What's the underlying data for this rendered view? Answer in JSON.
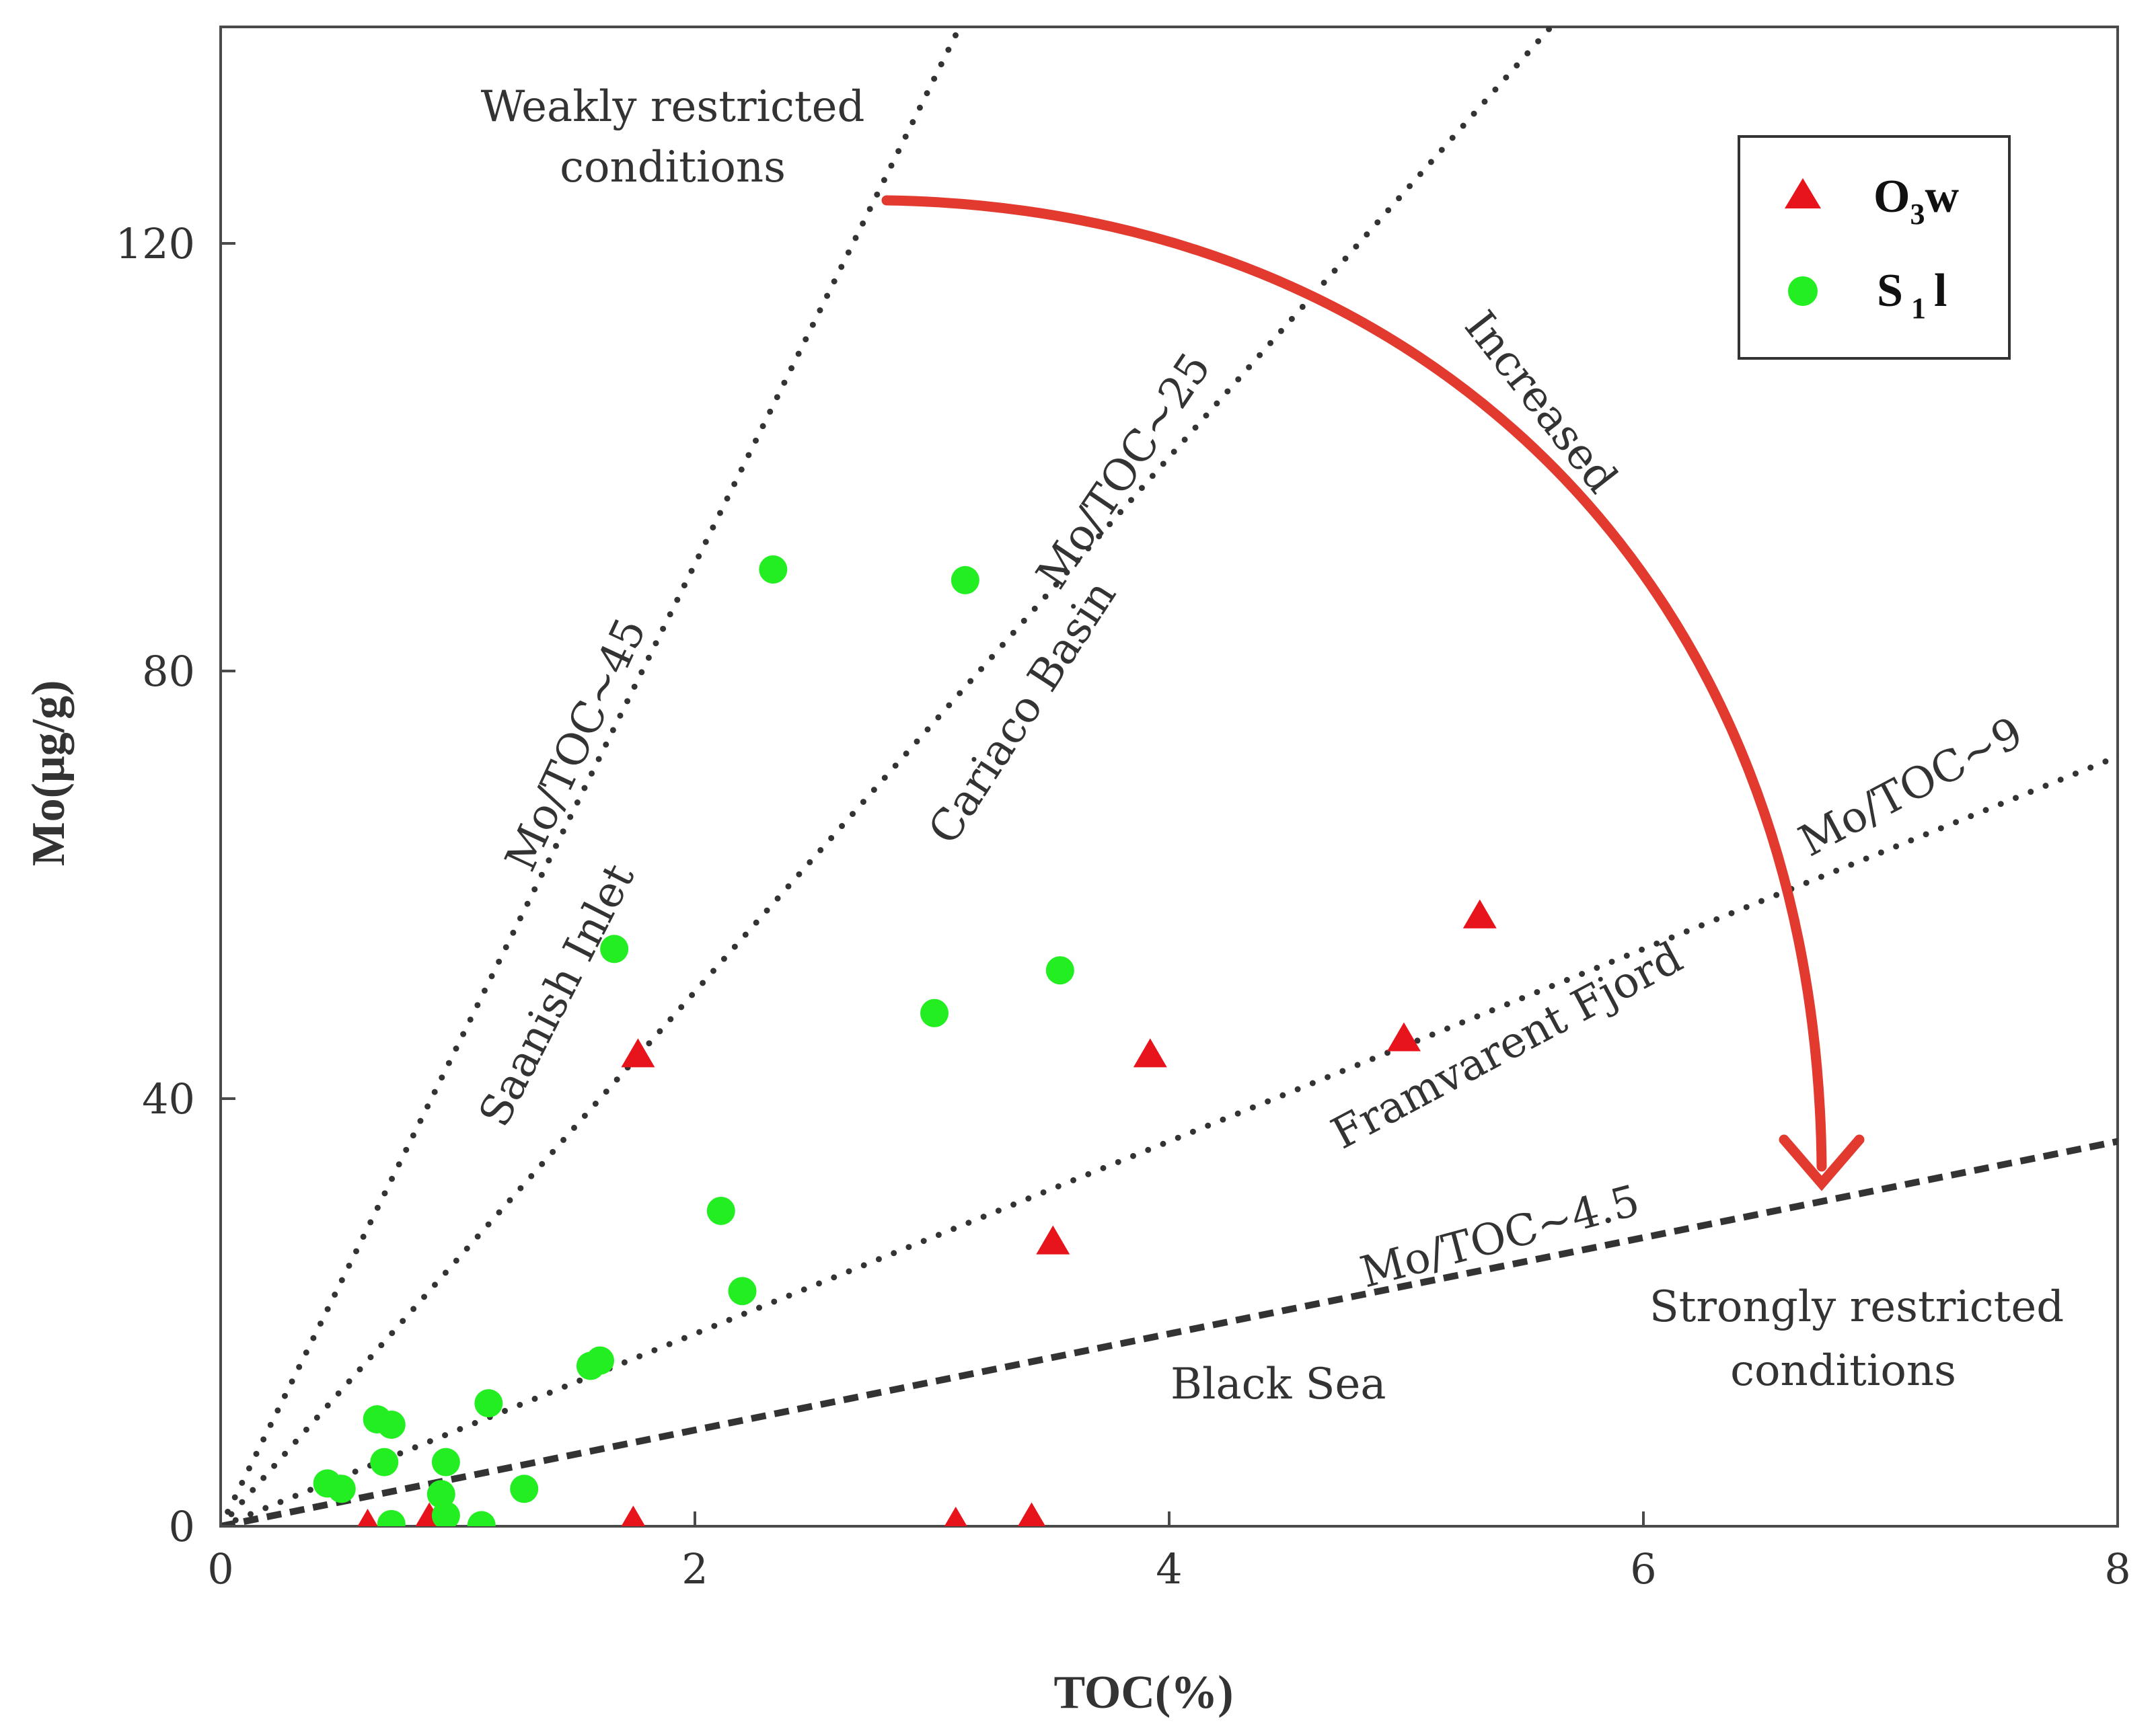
{
  "chart_data": {
    "type": "scatter",
    "xlabel": "TOC(%)",
    "ylabel": "Mo(μg/g)",
    "xlim": [
      0,
      8
    ],
    "ylim": [
      0,
      140
    ],
    "x_ticks": [
      "0",
      "2",
      "4",
      "6",
      "8"
    ],
    "x_tick_values": [
      0,
      2,
      4,
      6,
      8
    ],
    "y_ticks": [
      "0",
      "40",
      "80",
      "120"
    ],
    "y_tick_values": [
      0,
      40,
      80,
      120
    ],
    "grid": false,
    "legend_position": "top-right",
    "series": [
      {
        "name": "O3w",
        "legend_main": "O",
        "legend_sub": "3",
        "legend_tail": "w",
        "marker": "triangle",
        "color": "#e8141b",
        "points": [
          {
            "x": 0.62,
            "y": 0.0
          },
          {
            "x": 0.88,
            "y": 0.6
          },
          {
            "x": 1.74,
            "y": 0.3
          },
          {
            "x": 3.1,
            "y": 0.2
          },
          {
            "x": 3.42,
            "y": 0.6
          },
          {
            "x": 1.76,
            "y": 44.0
          },
          {
            "x": 3.92,
            "y": 44.0
          },
          {
            "x": 4.99,
            "y": 45.5
          },
          {
            "x": 5.31,
            "y": 57.0
          },
          {
            "x": 3.51,
            "y": 26.5
          }
        ]
      },
      {
        "name": "S1l",
        "legend_main": "S",
        "legend_sub": "1",
        "legend_tail": "l",
        "marker": "circle",
        "color": "#22ee22",
        "points": [
          {
            "x": 2.33,
            "y": 89.5
          },
          {
            "x": 3.14,
            "y": 88.5
          },
          {
            "x": 1.66,
            "y": 54.0
          },
          {
            "x": 3.54,
            "y": 52.0
          },
          {
            "x": 3.01,
            "y": 48.0
          },
          {
            "x": 2.11,
            "y": 29.5
          },
          {
            "x": 2.2,
            "y": 22.0
          },
          {
            "x": 1.56,
            "y": 15.0
          },
          {
            "x": 1.6,
            "y": 15.5
          },
          {
            "x": 1.13,
            "y": 11.5
          },
          {
            "x": 0.66,
            "y": 10.0
          },
          {
            "x": 0.72,
            "y": 9.5
          },
          {
            "x": 0.69,
            "y": 6.0
          },
          {
            "x": 0.95,
            "y": 6.0
          },
          {
            "x": 0.45,
            "y": 4.0
          },
          {
            "x": 0.51,
            "y": 3.5
          },
          {
            "x": 1.28,
            "y": 3.5
          },
          {
            "x": 0.93,
            "y": 3.0
          },
          {
            "x": 0.95,
            "y": 1.0
          },
          {
            "x": 0.72,
            "y": 0.2
          },
          {
            "x": 1.1,
            "y": 0.1
          }
        ]
      }
    ],
    "reference_lines": [
      {
        "name": "Mo/TOC~45",
        "slope": 45,
        "style": "dotted"
      },
      {
        "name": "Mo/TOC~25",
        "slope": 25,
        "style": "dotted"
      },
      {
        "name": "Mo/TOC~9",
        "slope": 9,
        "style": "dotted"
      },
      {
        "name": "Mo/TOC~4.5",
        "slope": 4.5,
        "style": "dashed"
      }
    ],
    "annotations": {
      "weak_line1": "Weakly restricted",
      "weak_line2": "conditions",
      "strong_line1": "Strongly restricted",
      "strong_line2": "conditions",
      "increased": "Increased",
      "saanish": "Saanish Inlet",
      "cariaco": "Cariaco Basin",
      "framvarent": "Framvarent Fjord",
      "black_sea": "Black Sea",
      "label_45": "Mo/TOC~45",
      "label_25": "Mo/TOC~25",
      "label_9": "Mo/TOC~9",
      "label_45b": "Mo/TOC~4.5"
    },
    "arrow_color": "#e23a2e"
  }
}
